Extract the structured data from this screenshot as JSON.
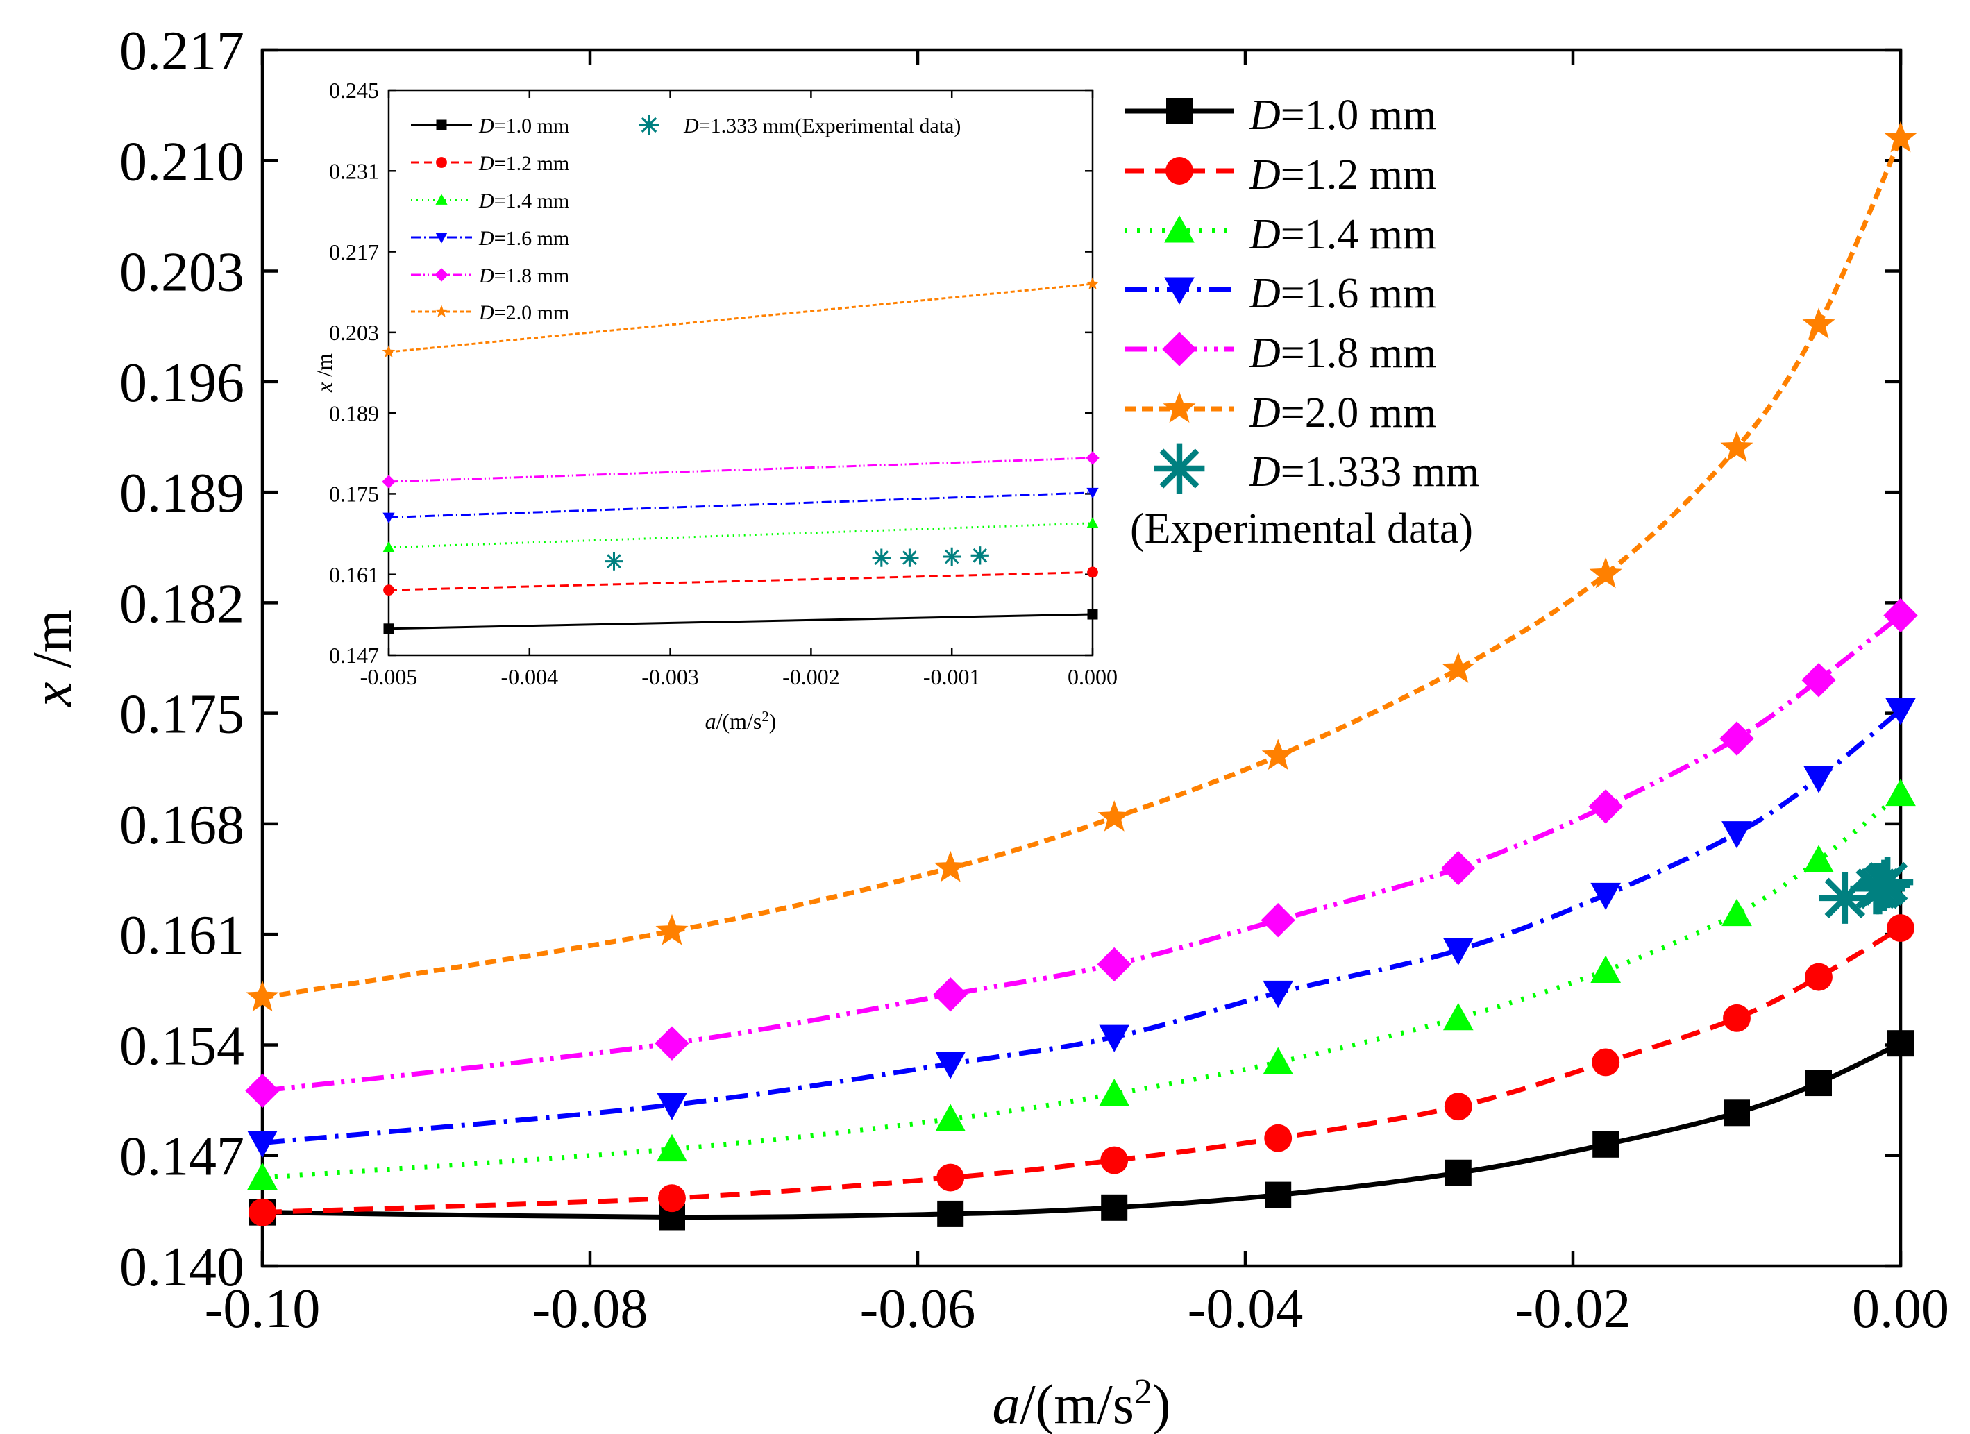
{
  "chart_data": [
    {
      "id": "main",
      "type": "line",
      "title": "",
      "xlabel_italic": "a",
      "xlabel_rest": "/(m/s",
      "xlabel_sup": "2",
      "xlabel_close": ")",
      "ylabel_italic": "x",
      "ylabel_rest": " /m",
      "xlim": [
        -0.1,
        0.0
      ],
      "ylim": [
        0.14,
        0.217
      ],
      "xticks": [
        -0.1,
        -0.08,
        -0.06,
        -0.04,
        -0.02,
        0.0
      ],
      "xtick_labels": [
        "-0.10",
        "-0.08",
        "-0.06",
        "-0.04",
        "-0.02",
        "0.00"
      ],
      "yticks": [
        0.14,
        0.147,
        0.154,
        0.161,
        0.168,
        0.175,
        0.182,
        0.189,
        0.196,
        0.203,
        0.21,
        0.217
      ],
      "ytick_labels": [
        "0.140",
        "0.147",
        "0.154",
        "0.161",
        "0.168",
        "0.175",
        "0.182",
        "0.189",
        "0.196",
        "0.203",
        "0.210",
        "0.217"
      ],
      "grid": false,
      "legend_position": "top-right",
      "x": [
        -0.1,
        -0.075,
        -0.058,
        -0.048,
        -0.038,
        -0.027,
        -0.018,
        -0.01,
        -0.005,
        0.0
      ],
      "series": [
        {
          "name": "D=1.0 mm",
          "label_italic": "D",
          "label_rest": "=1.0 mm",
          "color": "#000000",
          "marker": "square",
          "dash": "solid",
          "values": [
            0.1434,
            0.1431,
            0.1433,
            0.1437,
            0.1445,
            0.1459,
            0.1477,
            0.1497,
            0.1516,
            0.1541
          ]
        },
        {
          "name": "D=1.2 mm",
          "label_italic": "D",
          "label_rest": "=1.2 mm",
          "color": "#ff0000",
          "marker": "circle",
          "dash": "dash",
          "values": [
            0.1434,
            0.1443,
            0.1456,
            0.1467,
            0.1481,
            0.1501,
            0.1529,
            0.1557,
            0.1583,
            0.1614
          ]
        },
        {
          "name": "D=1.4 mm",
          "label_italic": "D",
          "label_rest": "=1.4 mm",
          "color": "#00ff00",
          "marker": "triangle-up",
          "dash": "dot",
          "values": [
            0.1456,
            0.1474,
            0.1493,
            0.1509,
            0.1529,
            0.1557,
            0.1587,
            0.1623,
            0.1657,
            0.1699
          ]
        },
        {
          "name": "D=1.6 mm",
          "label_italic": "D",
          "label_rest": "=1.6 mm",
          "color": "#0000ff",
          "marker": "triangle-down",
          "dash": "dashdot",
          "values": [
            0.1478,
            0.1502,
            0.1528,
            0.1545,
            0.1573,
            0.16,
            0.1635,
            0.1674,
            0.1709,
            0.1752
          ]
        },
        {
          "name": "D=1.8 mm",
          "label_italic": "D",
          "label_rest": "=1.8 mm",
          "color": "#ff00ff",
          "marker": "diamond",
          "dash": "dashdotdot",
          "values": [
            0.1511,
            0.1541,
            0.1572,
            0.1591,
            0.1619,
            0.1652,
            0.1691,
            0.1734,
            0.1771,
            0.1812
          ]
        },
        {
          "name": "D=2.0 mm",
          "label_italic": "D",
          "label_rest": "=2.0 mm",
          "color": "#ff8000",
          "marker": "star",
          "dash": "shortdash",
          "values": [
            0.157,
            0.1612,
            0.1652,
            0.1684,
            0.1723,
            0.1778,
            0.1838,
            0.1918,
            0.1996,
            0.2114
          ]
        }
      ],
      "experimental": {
        "name": "D=1.333 mm (Experimental data)",
        "label_italic": "D",
        "label_rest": "=1.333 mm",
        "label_line2": "(Experimental data)",
        "color": "#008080",
        "marker": "asterisk",
        "x": [
          -0.0034,
          -0.0015,
          -0.0013,
          -0.001,
          -0.0008
        ],
        "y": [
          0.1633,
          0.1639,
          0.1639,
          0.1641,
          0.1643
        ]
      }
    },
    {
      "id": "inset",
      "type": "line",
      "title": "",
      "xlabel_italic": "a",
      "xlabel_rest": "/(m/s",
      "xlabel_sup": "2",
      "xlabel_close": ")",
      "ylabel_italic": "x",
      "ylabel_rest": " /m",
      "xlim": [
        -0.005,
        0.0
      ],
      "ylim": [
        0.147,
        0.245
      ],
      "xticks": [
        -0.005,
        -0.004,
        -0.003,
        -0.002,
        -0.001,
        0.0
      ],
      "xtick_labels": [
        "-0.005",
        "-0.004",
        "-0.003",
        "-0.002",
        "-0.001",
        "0.000"
      ],
      "yticks": [
        0.147,
        0.161,
        0.175,
        0.189,
        0.203,
        0.217,
        0.231,
        0.245
      ],
      "ytick_labels": [
        "0.147",
        "0.161",
        "0.175",
        "0.189",
        "0.203",
        "0.217",
        "0.231",
        "0.245"
      ],
      "grid": false,
      "legend_position": "top",
      "x": [
        -0.005,
        0.0
      ],
      "series": [
        {
          "name": "D=1.0 mm",
          "label_italic": "D",
          "label_rest": "=1.0 mm",
          "color": "#000000",
          "marker": "square",
          "dash": "solid",
          "values": [
            0.1516,
            0.1541
          ]
        },
        {
          "name": "D=1.2 mm",
          "label_italic": "D",
          "label_rest": "=1.2 mm",
          "color": "#ff0000",
          "marker": "circle",
          "dash": "dash",
          "values": [
            0.1583,
            0.1614
          ]
        },
        {
          "name": "D=1.4 mm",
          "label_italic": "D",
          "label_rest": "=1.4 mm",
          "color": "#00ff00",
          "marker": "triangle-up",
          "dash": "dot",
          "values": [
            0.1657,
            0.1699
          ]
        },
        {
          "name": "D=1.6 mm",
          "label_italic": "D",
          "label_rest": "=1.6 mm",
          "color": "#0000ff",
          "marker": "triangle-down",
          "dash": "dashdot",
          "values": [
            0.1709,
            0.1752
          ]
        },
        {
          "name": "D=1.8 mm",
          "label_italic": "D",
          "label_rest": "=1.8 mm",
          "color": "#ff00ff",
          "marker": "diamond",
          "dash": "dashdotdot",
          "values": [
            0.1771,
            0.1812
          ]
        },
        {
          "name": "D=2.0 mm",
          "label_italic": "D",
          "label_rest": "=2.0 mm",
          "color": "#ff8000",
          "marker": "star",
          "dash": "shortdash",
          "values": [
            0.1996,
            0.2114
          ]
        }
      ],
      "experimental": {
        "name": "D=1.333 mm(Experimental data)",
        "label_italic": "D",
        "label_rest": "=1.333 mm(Experimental data)",
        "color": "#008080",
        "marker": "asterisk",
        "x": [
          -0.0034,
          -0.0015,
          -0.0013,
          -0.001,
          -0.0008
        ],
        "y": [
          0.1633,
          0.1639,
          0.1639,
          0.1641,
          0.1643
        ]
      }
    }
  ]
}
